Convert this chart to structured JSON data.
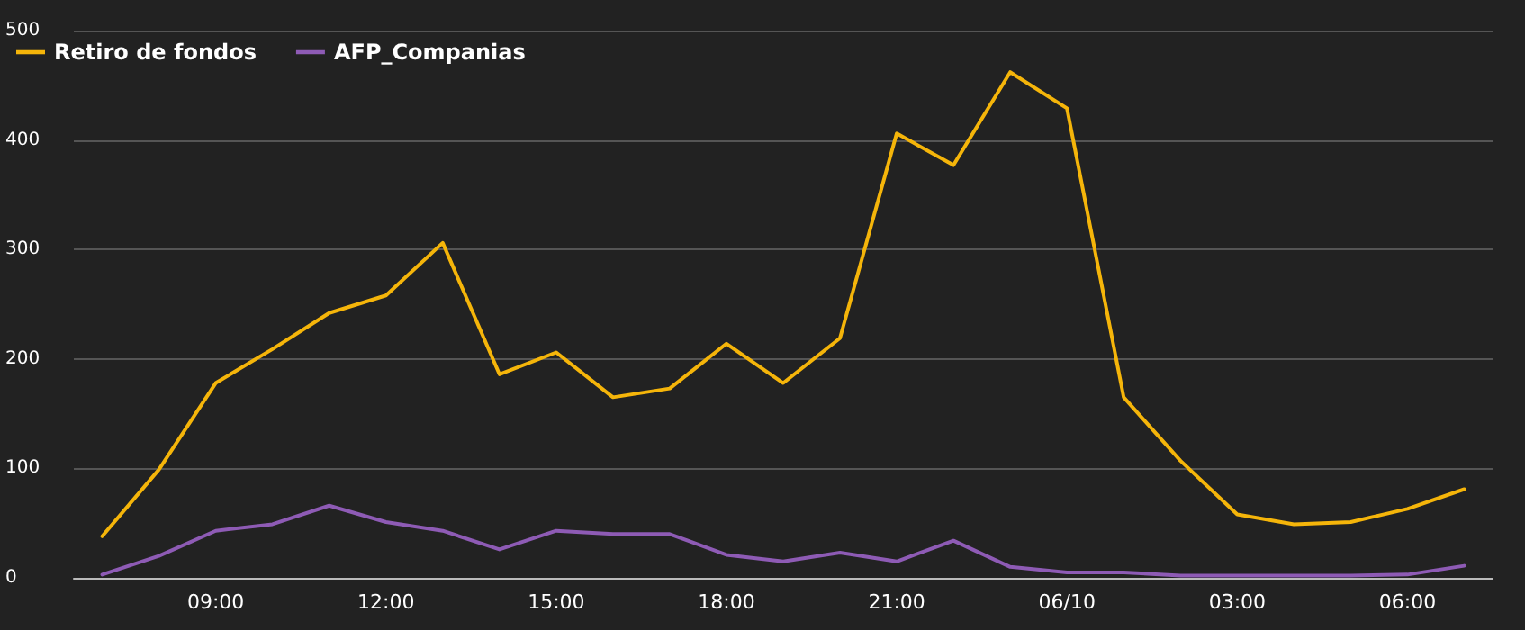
{
  "chart_data": {
    "type": "line",
    "categories": [
      null,
      null,
      "09:00",
      null,
      null,
      "12:00",
      null,
      null,
      "15:00",
      null,
      null,
      "18:00",
      null,
      null,
      "21:00",
      null,
      null,
      "06/10",
      null,
      null,
      "03:00",
      null,
      null,
      "06:00",
      null
    ],
    "series": [
      {
        "name": "Retiro de fondos",
        "color": "#f5b50a",
        "values": [
          38,
          99,
          178,
          209,
          242,
          258,
          306,
          186,
          206,
          165,
          173,
          214,
          178,
          219,
          406,
          377,
          462,
          429,
          165,
          107,
          58,
          49,
          51,
          63,
          81
        ]
      },
      {
        "name": "AFP_Companias",
        "color": "#8e5bb5",
        "values": [
          3,
          20,
          43,
          49,
          66,
          51,
          43,
          26,
          43,
          40,
          40,
          21,
          15,
          23,
          15,
          34,
          10,
          5,
          5,
          2,
          2,
          2,
          2,
          3,
          11
        ]
      }
    ],
    "ylim": [
      0,
      500
    ],
    "yticks": [
      0,
      100,
      200,
      300,
      400,
      500
    ],
    "grid": "y",
    "legend": "top left",
    "marker": "none",
    "line_style": "solid"
  }
}
